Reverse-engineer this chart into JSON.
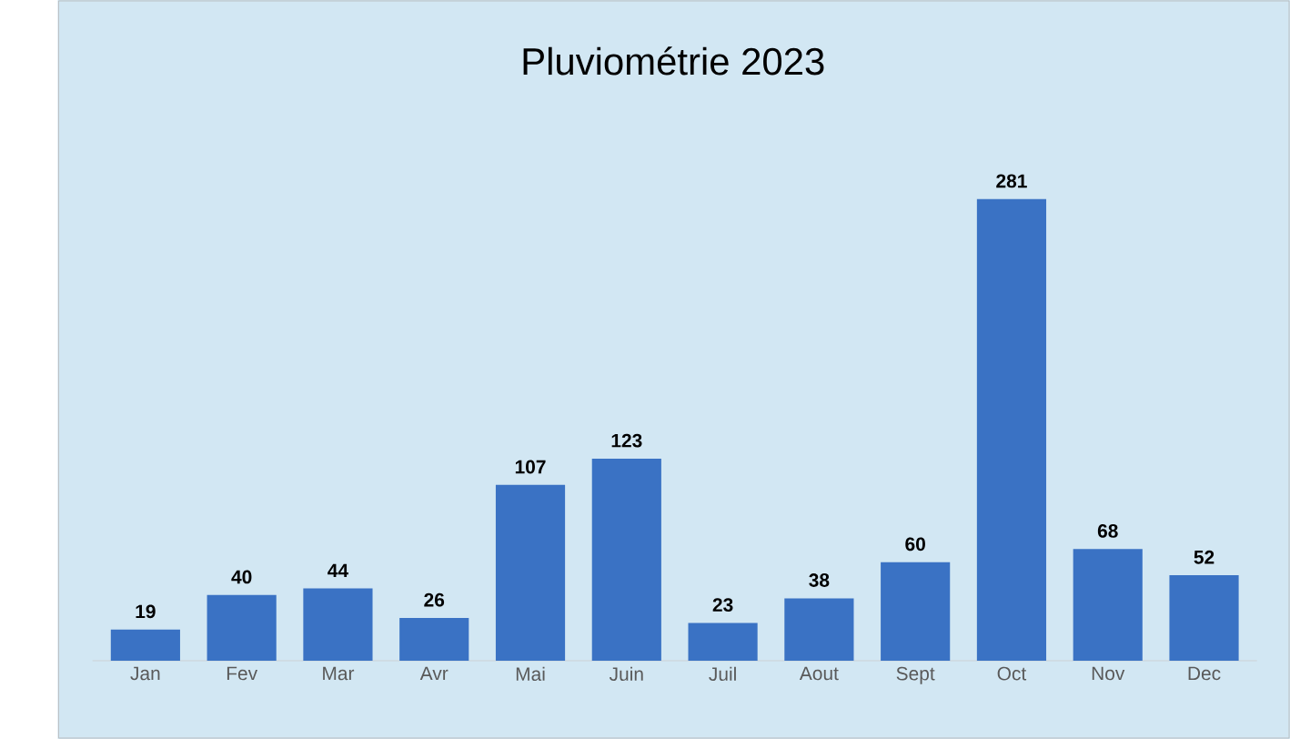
{
  "chart_data": {
    "type": "bar",
    "title": "Pluviométrie 2023",
    "categories": [
      "Jan",
      "Fev",
      "Mar",
      "Avr",
      "Mai",
      "Juin",
      "Juil",
      "Aout",
      "Sept",
      "Oct",
      "Nov",
      "Dec"
    ],
    "values": [
      19,
      40,
      44,
      26,
      107,
      123,
      23,
      38,
      60,
      281,
      68,
      52
    ],
    "color": "#3a72c4",
    "data_labels": true
  }
}
